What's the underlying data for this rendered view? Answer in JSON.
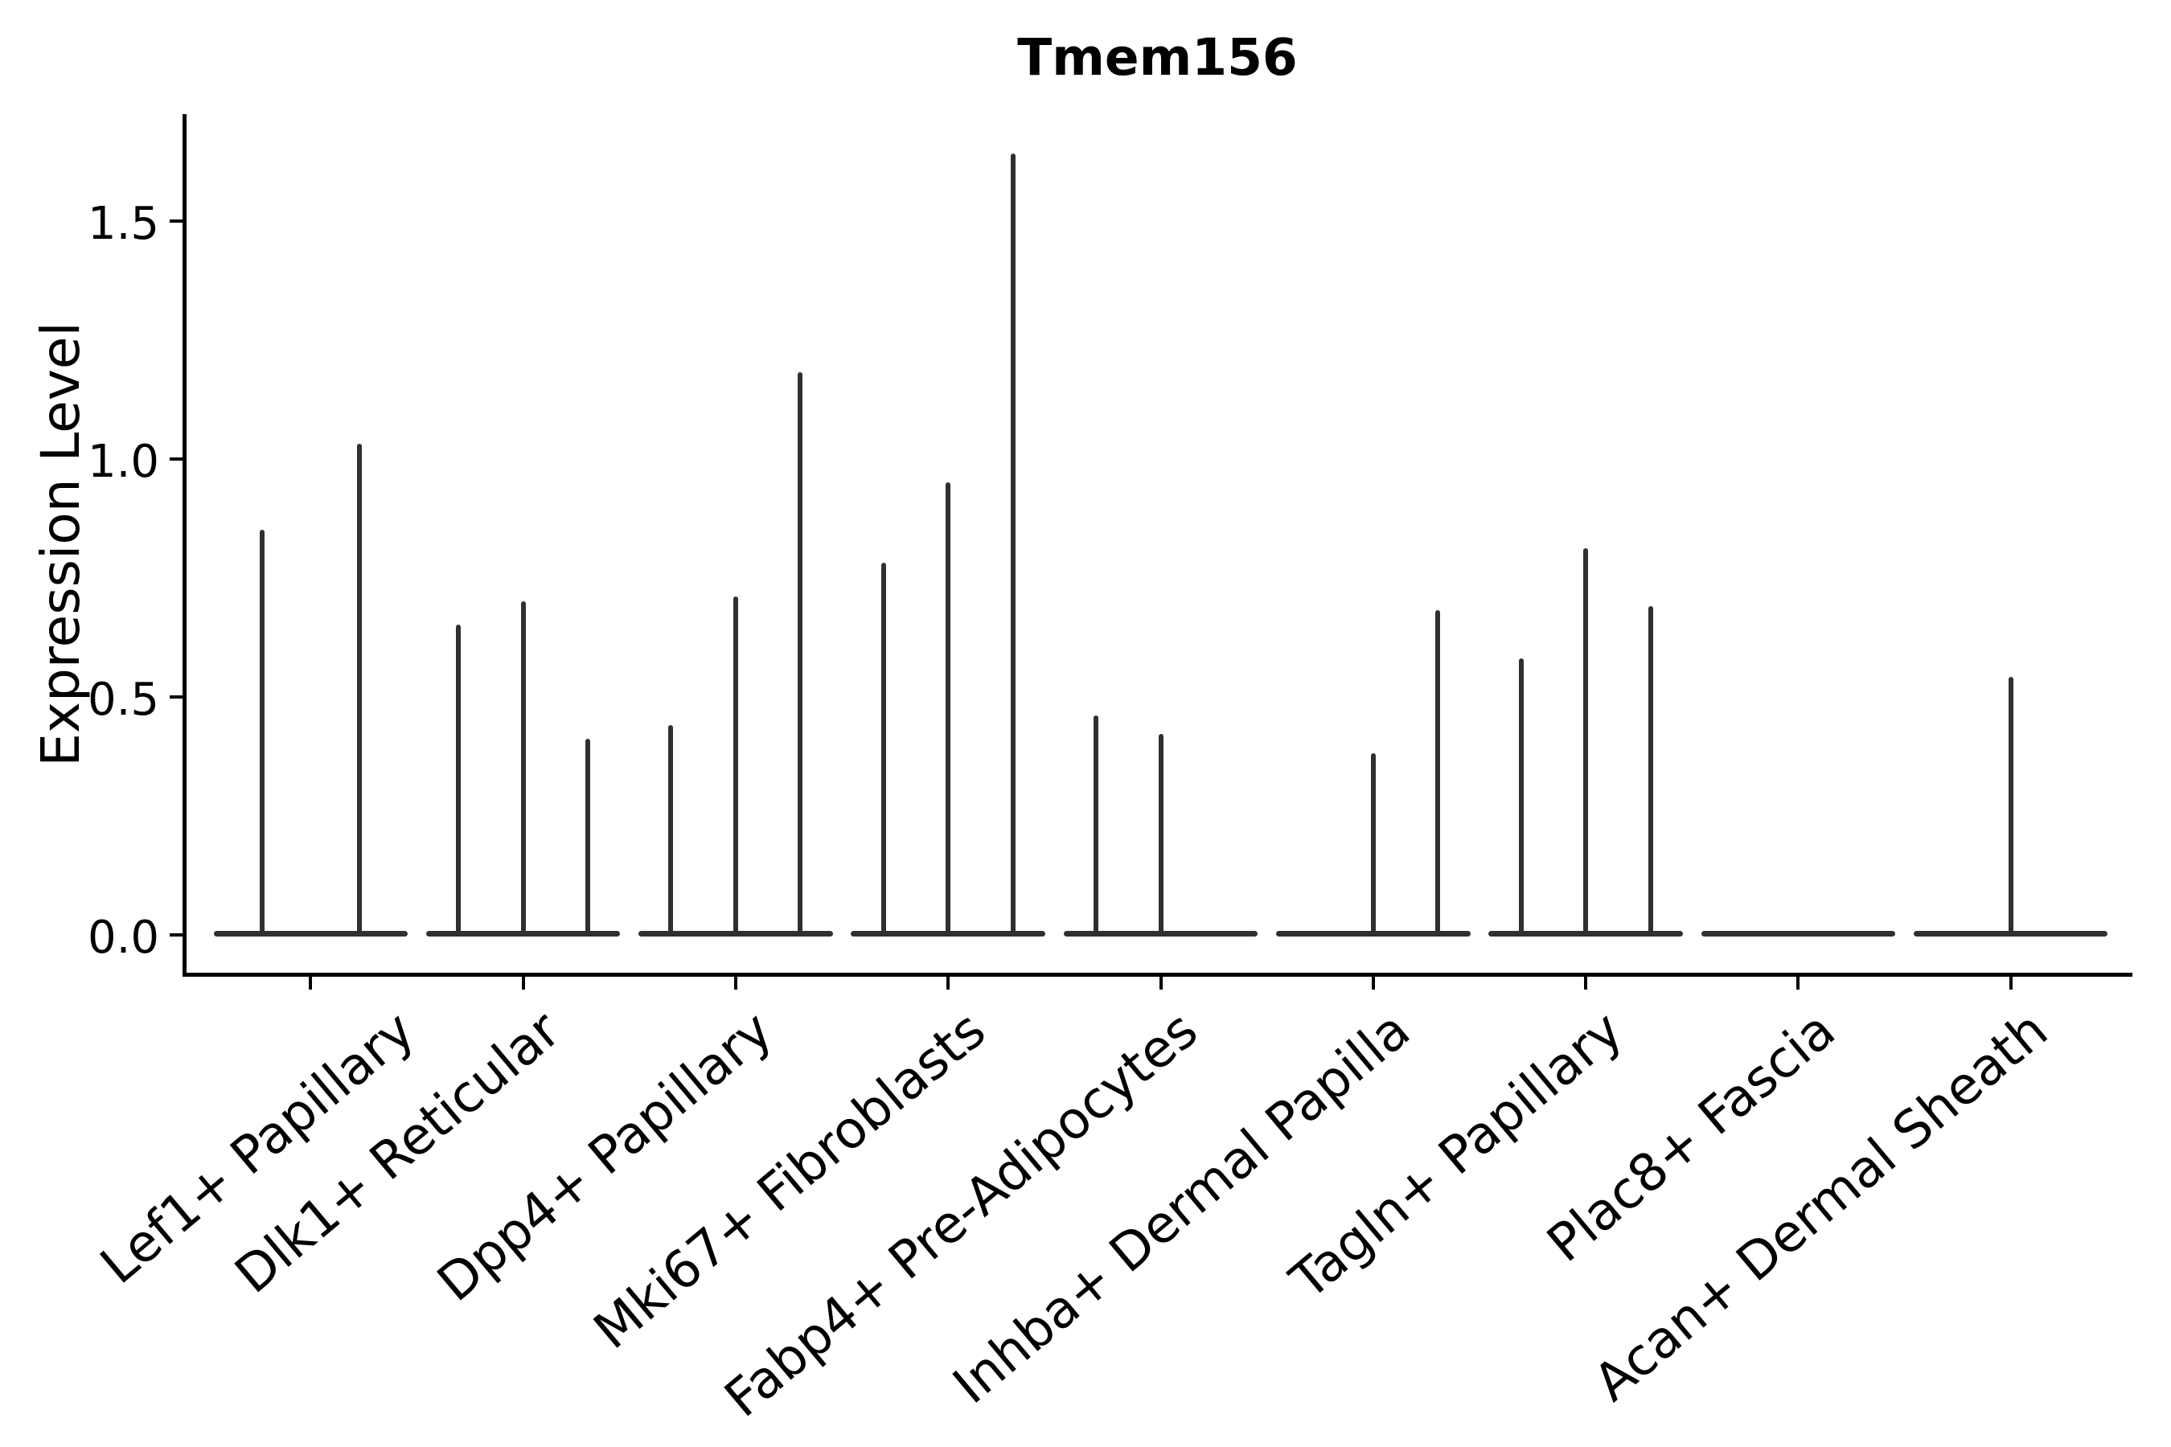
{
  "chart_data": {
    "type": "violin",
    "title": "Tmem156",
    "ylabel": "Expression Level",
    "xlabel": "",
    "ylim": [
      0,
      1.72
    ],
    "ytick_values": [
      0.0,
      0.5,
      1.0,
      1.5
    ],
    "ytick_labels": [
      "0.0",
      "0.5",
      "1.0",
      "1.5"
    ],
    "grid": false,
    "legend": "none",
    "categories": [
      {
        "label": "Lef1+ Papillary",
        "violin_max": [
          0.85,
          1.03
        ]
      },
      {
        "label": "Dlk1+ Reticular",
        "violin_max": [
          0.65,
          0.7,
          0.41
        ]
      },
      {
        "label": "Dpp4+ Papillary",
        "violin_max": [
          0.44,
          0.71,
          1.18
        ]
      },
      {
        "label": "Mki67+ Fibroblasts",
        "violin_max": [
          0.78,
          0.95,
          1.64
        ]
      },
      {
        "label": "Fabp4+ Pre-Adipocytes",
        "violin_max": [
          0.46,
          0.42,
          0
        ]
      },
      {
        "label": "Inhba+ Dermal Papilla",
        "violin_max": [
          0,
          0.38,
          0.68
        ]
      },
      {
        "label": "Tagln+ Papillary",
        "violin_max": [
          0.58,
          0.81,
          0.69
        ]
      },
      {
        "label": "Plac8+ Fascia",
        "violin_max": [
          0,
          0,
          0
        ]
      },
      {
        "label": "Acan+ Dermal Sheath",
        "violin_max": [
          0,
          0.54,
          0
        ]
      }
    ],
    "colors": {
      "violin": "#303030",
      "axis": "#000000",
      "text": "#000000",
      "background": "#ffffff"
    }
  }
}
